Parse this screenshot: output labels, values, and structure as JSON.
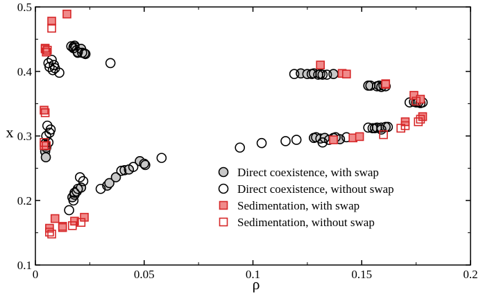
{
  "chart_data": {
    "type": "scatter",
    "title": "",
    "xlabel": "ρ",
    "ylabel": "x",
    "xlim": [
      0,
      0.2
    ],
    "ylim": [
      0.1,
      0.5
    ],
    "xticks": [
      0,
      0.05,
      0.1,
      0.15,
      0.2
    ],
    "xtick_labels": [
      "0",
      "0.05",
      "0.1",
      "0.15",
      "0.2"
    ],
    "yticks": [
      0.1,
      0.2,
      0.3,
      0.4,
      0.5
    ],
    "ytick_labels": [
      "0.1",
      "0.2",
      "0.3",
      "0.4",
      "0.5"
    ],
    "grid": false,
    "legend_position": "bottom-right",
    "series": [
      {
        "name": "Direct coexistence, with swap",
        "marker": "circle",
        "filled": true,
        "stroke": "#000000",
        "fill": "#c8c8c8",
        "points": [
          [
            0.0175,
            0.438
          ],
          [
            0.0185,
            0.437
          ],
          [
            0.019,
            0.433
          ],
          [
            0.0195,
            0.429
          ],
          [
            0.021,
            0.435
          ],
          [
            0.0225,
            0.428
          ],
          [
            0.0045,
            0.276
          ],
          [
            0.0048,
            0.267
          ],
          [
            0.005,
            0.282
          ],
          [
            0.017,
            0.205
          ],
          [
            0.018,
            0.209
          ],
          [
            0.019,
            0.214
          ],
          [
            0.021,
            0.22
          ],
          [
            0.033,
            0.223
          ],
          [
            0.034,
            0.227
          ],
          [
            0.037,
            0.236
          ],
          [
            0.041,
            0.247
          ],
          [
            0.043,
            0.248
          ],
          [
            0.048,
            0.261
          ],
          [
            0.05,
            0.257
          ],
          [
            0.122,
            0.397
          ],
          [
            0.125,
            0.396
          ],
          [
            0.128,
            0.397
          ],
          [
            0.131,
            0.396
          ],
          [
            0.137,
            0.396
          ],
          [
            0.153,
            0.378
          ],
          [
            0.158,
            0.378
          ],
          [
            0.16,
            0.378
          ],
          [
            0.161,
            0.377
          ],
          [
            0.128,
            0.297
          ],
          [
            0.131,
            0.296
          ],
          [
            0.133,
            0.297
          ],
          [
            0.137,
            0.297
          ],
          [
            0.14,
            0.295
          ],
          [
            0.156,
            0.312
          ],
          [
            0.159,
            0.313
          ],
          [
            0.161,
            0.314
          ],
          [
            0.174,
            0.353
          ],
          [
            0.176,
            0.352
          ]
        ]
      },
      {
        "name": "Direct coexistence, without swap",
        "marker": "circle",
        "filled": false,
        "stroke": "#000000",
        "points": [
          [
            0.0165,
            0.439
          ],
          [
            0.0175,
            0.436
          ],
          [
            0.018,
            0.44
          ],
          [
            0.0195,
            0.43
          ],
          [
            0.0215,
            0.429
          ],
          [
            0.023,
            0.427
          ],
          [
            0.0345,
            0.413
          ],
          [
            0.006,
            0.413
          ],
          [
            0.0065,
            0.407
          ],
          [
            0.0075,
            0.418
          ],
          [
            0.008,
            0.402
          ],
          [
            0.0085,
            0.41
          ],
          [
            0.009,
            0.405
          ],
          [
            0.011,
            0.398
          ],
          [
            0.0045,
            0.288
          ],
          [
            0.0048,
            0.285
          ],
          [
            0.005,
            0.3
          ],
          [
            0.0055,
            0.316
          ],
          [
            0.006,
            0.29
          ],
          [
            0.007,
            0.31
          ],
          [
            0.0065,
            0.305
          ],
          [
            0.0155,
            0.185
          ],
          [
            0.0175,
            0.2
          ],
          [
            0.018,
            0.212
          ],
          [
            0.0195,
            0.218
          ],
          [
            0.0205,
            0.236
          ],
          [
            0.022,
            0.23
          ],
          [
            0.03,
            0.218
          ],
          [
            0.0395,
            0.246
          ],
          [
            0.045,
            0.252
          ],
          [
            0.0505,
            0.255
          ],
          [
            0.058,
            0.266
          ],
          [
            0.094,
            0.282
          ],
          [
            0.104,
            0.289
          ],
          [
            0.115,
            0.292
          ],
          [
            0.12,
            0.294
          ],
          [
            0.119,
            0.396
          ],
          [
            0.127,
            0.396
          ],
          [
            0.13,
            0.395
          ],
          [
            0.132,
            0.395
          ],
          [
            0.134,
            0.395
          ],
          [
            0.129,
            0.298
          ],
          [
            0.132,
            0.29
          ],
          [
            0.135,
            0.294
          ],
          [
            0.138,
            0.298
          ],
          [
            0.143,
            0.298
          ],
          [
            0.154,
            0.378
          ],
          [
            0.157,
            0.377
          ],
          [
            0.159,
            0.376
          ],
          [
            0.153,
            0.313
          ],
          [
            0.155,
            0.312
          ],
          [
            0.157,
            0.313
          ],
          [
            0.159,
            0.31
          ],
          [
            0.162,
            0.314
          ],
          [
            0.172,
            0.352
          ],
          [
            0.175,
            0.352
          ],
          [
            0.177,
            0.351
          ],
          [
            0.178,
            0.352
          ]
        ]
      },
      {
        "name": "Sedimentation, with swap",
        "marker": "square",
        "filled": true,
        "stroke": "#d62728",
        "fill": "#f08a8a",
        "points": [
          [
            0.0075,
            0.478
          ],
          [
            0.0145,
            0.489
          ],
          [
            0.0045,
            0.435
          ],
          [
            0.005,
            0.43
          ],
          [
            0.004,
            0.34
          ],
          [
            0.004,
            0.285
          ],
          [
            0.0065,
            0.157
          ],
          [
            0.009,
            0.172
          ],
          [
            0.0125,
            0.16
          ],
          [
            0.018,
            0.168
          ],
          [
            0.0225,
            0.174
          ],
          [
            0.131,
            0.41
          ],
          [
            0.141,
            0.397
          ],
          [
            0.143,
            0.396
          ],
          [
            0.161,
            0.381
          ],
          [
            0.137,
            0.294
          ],
          [
            0.146,
            0.297
          ],
          [
            0.149,
            0.299
          ],
          [
            0.17,
            0.322
          ],
          [
            0.174,
            0.363
          ],
          [
            0.177,
            0.357
          ],
          [
            0.178,
            0.33
          ]
        ]
      },
      {
        "name": "Sedimentation, without swap",
        "marker": "square",
        "filled": false,
        "stroke": "#d62728",
        "points": [
          [
            0.0075,
            0.467
          ],
          [
            0.0045,
            0.436
          ],
          [
            0.0055,
            0.433
          ],
          [
            0.0045,
            0.336
          ],
          [
            0.004,
            0.29
          ],
          [
            0.005,
            0.285
          ],
          [
            0.0065,
            0.151
          ],
          [
            0.0075,
            0.148
          ],
          [
            0.0125,
            0.158
          ],
          [
            0.017,
            0.161
          ],
          [
            0.021,
            0.166
          ],
          [
            0.161,
            0.38
          ],
          [
            0.16,
            0.302
          ],
          [
            0.168,
            0.312
          ],
          [
            0.17,
            0.316
          ],
          [
            0.175,
            0.354
          ],
          [
            0.176,
            0.322
          ],
          [
            0.177,
            0.326
          ]
        ]
      }
    ]
  }
}
